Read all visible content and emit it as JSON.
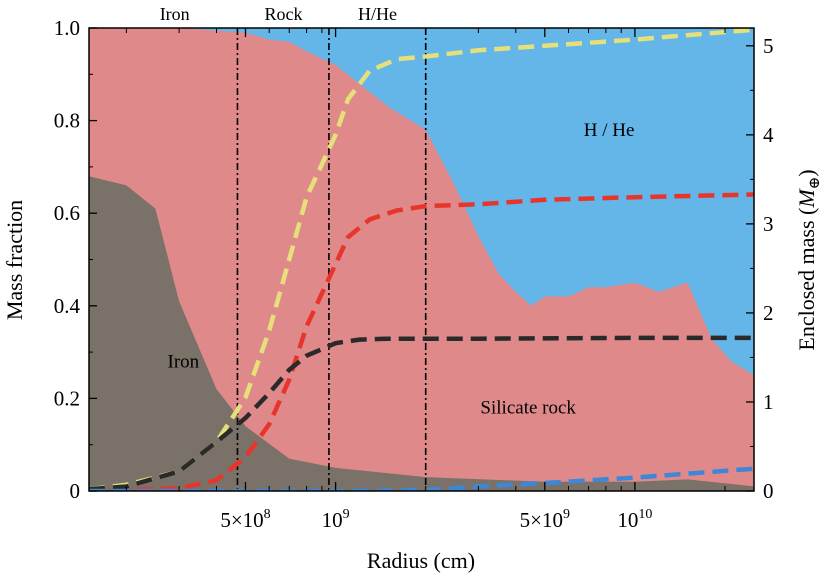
{
  "chart_data": {
    "type": "area",
    "xlabel": "Radius (cm)",
    "ylabel_left": "Mass fraction",
    "ylabel_right": "Enclosed mass (",
    "ylabel_right_unit": "M",
    "ylabel_right_sub": "⊕",
    "ylabel_right_close": ")",
    "x_scale": "log",
    "xlim": [
      150000000,
      25000000000
    ],
    "ylim_left": [
      0,
      1
    ],
    "ylim_right": [
      0,
      5.2
    ],
    "x_ticks": [
      {
        "value": 500000000,
        "label": "5×10",
        "exp": "8"
      },
      {
        "value": 1000000000,
        "label": "10",
        "exp": "9"
      },
      {
        "value": 5000000000,
        "label": "5×10",
        "exp": "9"
      },
      {
        "value": 10000000000,
        "label": "10",
        "exp": "10"
      }
    ],
    "y_ticks_left": [
      {
        "value": 0,
        "label": "0"
      },
      {
        "value": 0.2,
        "label": "0.2"
      },
      {
        "value": 0.4,
        "label": "0.4"
      },
      {
        "value": 0.6,
        "label": "0.6"
      },
      {
        "value": 0.8,
        "label": "0.8"
      },
      {
        "value": 1.0,
        "label": "1.0"
      }
    ],
    "y_ticks_right": [
      {
        "value": 0,
        "label": "0"
      },
      {
        "value": 1,
        "label": "1"
      },
      {
        "value": 2,
        "label": "2"
      },
      {
        "value": 3,
        "label": "3"
      },
      {
        "value": 4,
        "label": "4"
      },
      {
        "value": 5,
        "label": "5"
      }
    ],
    "layer_colors": {
      "iron": "#7a7168",
      "rock": "#e0898b",
      "hhe": "#64b5e8"
    },
    "stacked_areas": {
      "iron": [
        [
          150000000.0,
          0.68
        ],
        [
          200000000.0,
          0.66
        ],
        [
          250000000.0,
          0.61
        ],
        [
          300000000.0,
          0.41
        ],
        [
          400000000.0,
          0.22
        ],
        [
          500000000.0,
          0.14
        ],
        [
          700000000.0,
          0.07
        ],
        [
          1000000000.0,
          0.05
        ],
        [
          2000000000.0,
          0.03
        ],
        [
          5000000000.0,
          0.02
        ],
        [
          10000000000.0,
          0.02
        ],
        [
          15000000000.0,
          0.025
        ],
        [
          25000000000.0,
          0.01
        ]
      ],
      "iron_plus_rock": [
        [
          150000000.0,
          1.0
        ],
        [
          300000000.0,
          1.0
        ],
        [
          500000000.0,
          0.99
        ],
        [
          600000000.0,
          0.975
        ],
        [
          700000000.0,
          0.97
        ],
        [
          800000000.0,
          0.95
        ],
        [
          1000000000.0,
          0.92
        ],
        [
          1500000000.0,
          0.83
        ],
        [
          2000000000.0,
          0.78
        ],
        [
          2500000000.0,
          0.66
        ],
        [
          3000000000.0,
          0.55
        ],
        [
          3500000000.0,
          0.47
        ],
        [
          4000000000.0,
          0.43
        ],
        [
          4500000000.0,
          0.4
        ],
        [
          5000000000.0,
          0.42
        ],
        [
          6000000000.0,
          0.42
        ],
        [
          7000000000.0,
          0.44
        ],
        [
          8000000000.0,
          0.44
        ],
        [
          10000000000.0,
          0.45
        ],
        [
          12000000000.0,
          0.43
        ],
        [
          15000000000.0,
          0.45
        ],
        [
          18000000000.0,
          0.33
        ],
        [
          21000000000.0,
          0.28
        ],
        [
          25000000000.0,
          0.25
        ]
      ]
    },
    "series": [
      {
        "color": "#e5e07a",
        "axis": "right",
        "points": [
          [
            150000000.0,
            0.02
          ],
          [
            200000000.0,
            0.07
          ],
          [
            300000000.0,
            0.22
          ],
          [
            400000000.0,
            0.55
          ],
          [
            500000000.0,
            1.05
          ],
          [
            600000000.0,
            1.8
          ],
          [
            700000000.0,
            2.6
          ],
          [
            800000000.0,
            3.3
          ],
          [
            1000000000.0,
            4.0
          ],
          [
            1100000000.0,
            4.4
          ],
          [
            1300000000.0,
            4.72
          ],
          [
            1600000000.0,
            4.85
          ],
          [
            2000000000.0,
            4.88
          ],
          [
            3000000000.0,
            4.95
          ],
          [
            5000000000.0,
            5.0
          ],
          [
            10000000000.0,
            5.07
          ],
          [
            15000000000.0,
            5.12
          ],
          [
            25000000000.0,
            5.18
          ]
        ]
      },
      {
        "color": "#e8352c",
        "axis": "right",
        "points": [
          [
            150000000.0,
            0.0
          ],
          [
            300000000.0,
            0.03
          ],
          [
            400000000.0,
            0.12
          ],
          [
            500000000.0,
            0.38
          ],
          [
            600000000.0,
            0.75
          ],
          [
            700000000.0,
            1.25
          ],
          [
            800000000.0,
            1.85
          ],
          [
            1000000000.0,
            2.55
          ],
          [
            1100000000.0,
            2.85
          ],
          [
            1300000000.0,
            3.05
          ],
          [
            1600000000.0,
            3.15
          ],
          [
            2000000000.0,
            3.2
          ],
          [
            3000000000.0,
            3.22
          ],
          [
            5000000000.0,
            3.27
          ],
          [
            10000000000.0,
            3.3
          ],
          [
            25000000000.0,
            3.33
          ]
        ]
      },
      {
        "color": "#2a2a2a",
        "axis": "right",
        "points": [
          [
            150000000.0,
            0.02
          ],
          [
            200000000.0,
            0.05
          ],
          [
            300000000.0,
            0.22
          ],
          [
            400000000.0,
            0.55
          ],
          [
            500000000.0,
            0.82
          ],
          [
            600000000.0,
            1.1
          ],
          [
            700000000.0,
            1.36
          ],
          [
            800000000.0,
            1.52
          ],
          [
            1000000000.0,
            1.66
          ],
          [
            1200000000.0,
            1.7
          ],
          [
            1500000000.0,
            1.71
          ],
          [
            3000000000.0,
            1.71
          ],
          [
            10000000000.0,
            1.72
          ],
          [
            25000000000.0,
            1.72
          ]
        ]
      },
      {
        "color": "#3d87d6",
        "axis": "right",
        "points": [
          [
            150000000.0,
            0.0
          ],
          [
            1000000000.0,
            0.0
          ],
          [
            2000000000.0,
            0.01
          ],
          [
            3000000000.0,
            0.05
          ],
          [
            5000000000.0,
            0.09
          ],
          [
            10000000000.0,
            0.15
          ],
          [
            25000000000.0,
            0.25
          ]
        ]
      }
    ],
    "boundaries": [
      {
        "x": 470000000
      },
      {
        "x": 950000000
      },
      {
        "x": 2000000000
      }
    ],
    "zone_labels": [
      {
        "label": "Iron",
        "x": 290000000
      },
      {
        "label": "Rock",
        "x": 670000000
      },
      {
        "label": "H/He",
        "x": 1380000000
      }
    ],
    "annotations": [
      {
        "label": "Iron",
        "x": 310000000,
        "y": 0.28
      },
      {
        "label": "Silicate rock",
        "x": 4400000000,
        "y": 0.18
      },
      {
        "label": "H / He",
        "x": 8200000000,
        "y": 0.78
      }
    ]
  }
}
